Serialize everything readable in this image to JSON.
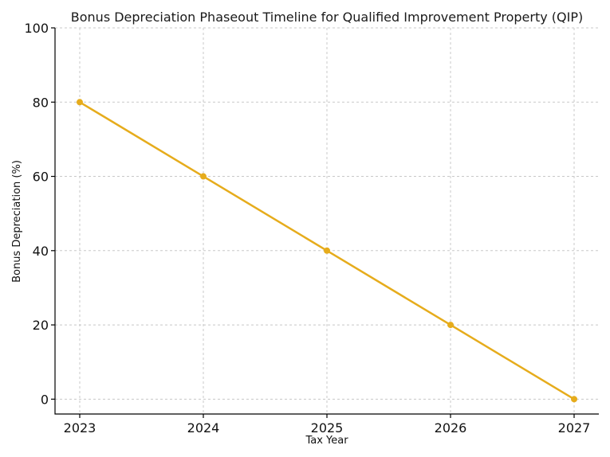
{
  "chart_data": {
    "type": "line",
    "title": "Bonus Depreciation Phaseout Timeline for Qualified Improvement Property (QIP)",
    "xlabel": "Tax Year",
    "ylabel": "Bonus Depreciation (%)",
    "x": [
      2023,
      2024,
      2025,
      2026,
      2027
    ],
    "x_tick_labels": [
      "2023",
      "2024",
      "2025",
      "2026",
      "2027"
    ],
    "xlim": [
      2022.8,
      2027.2
    ],
    "ylim": [
      -4,
      100
    ],
    "y_ticks": [
      0,
      20,
      40,
      60,
      80,
      100
    ],
    "y_tick_labels": [
      "0",
      "20",
      "40",
      "60",
      "80",
      "100"
    ],
    "grid": true,
    "series": [
      {
        "values": [
          80,
          60,
          40,
          20,
          0
        ],
        "color": "#e6ac1c",
        "marker": "circle"
      }
    ]
  }
}
